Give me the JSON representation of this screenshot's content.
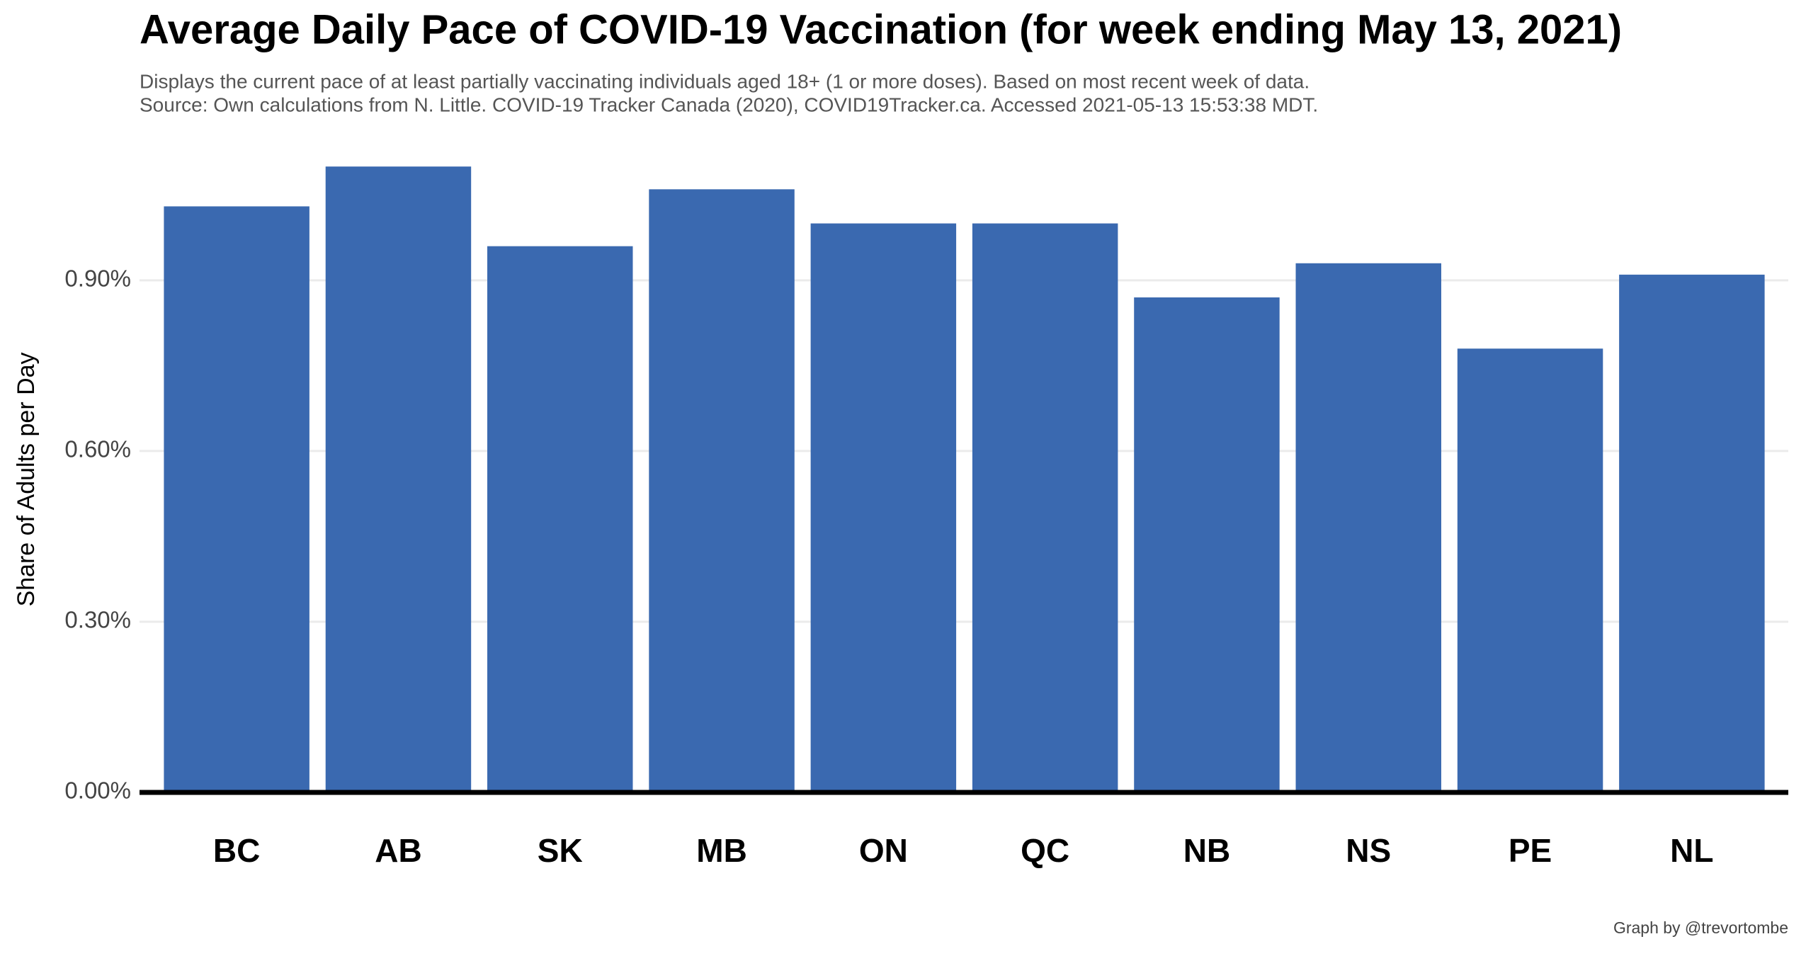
{
  "chart_data": {
    "type": "bar",
    "title": "Average Daily Pace of COVID-19 Vaccination (for week ending May 13, 2021)",
    "subtitle": [
      "Displays the current pace of at least partially vaccinating individuals aged 18+ (1 or more doses). Based on most recent week of data.",
      "Source: Own calculations from N. Little. COVID-19 Tracker Canada (2020), COVID19Tracker.ca. Accessed 2021-05-13 15:53:38 MDT."
    ],
    "y_label": "Share of Adults per Day",
    "caption": "Graph by @trevortombe",
    "categories": [
      "BC",
      "AB",
      "SK",
      "MB",
      "ON",
      "QC",
      "NB",
      "NS",
      "PE",
      "NL"
    ],
    "values": [
      1.03,
      1.1,
      0.96,
      1.06,
      1.0,
      1.0,
      0.87,
      0.93,
      0.78,
      0.91
    ],
    "color": "#3a69b0",
    "ylim": [
      0,
      1.15
    ],
    "yticks": [
      {
        "value": 0,
        "label": "0.00%"
      },
      {
        "value": 0.3,
        "label": "0.30%"
      },
      {
        "value": 0.6,
        "label": "0.60%"
      },
      {
        "value": 0.9,
        "label": "0.90%"
      }
    ],
    "grid": true
  }
}
